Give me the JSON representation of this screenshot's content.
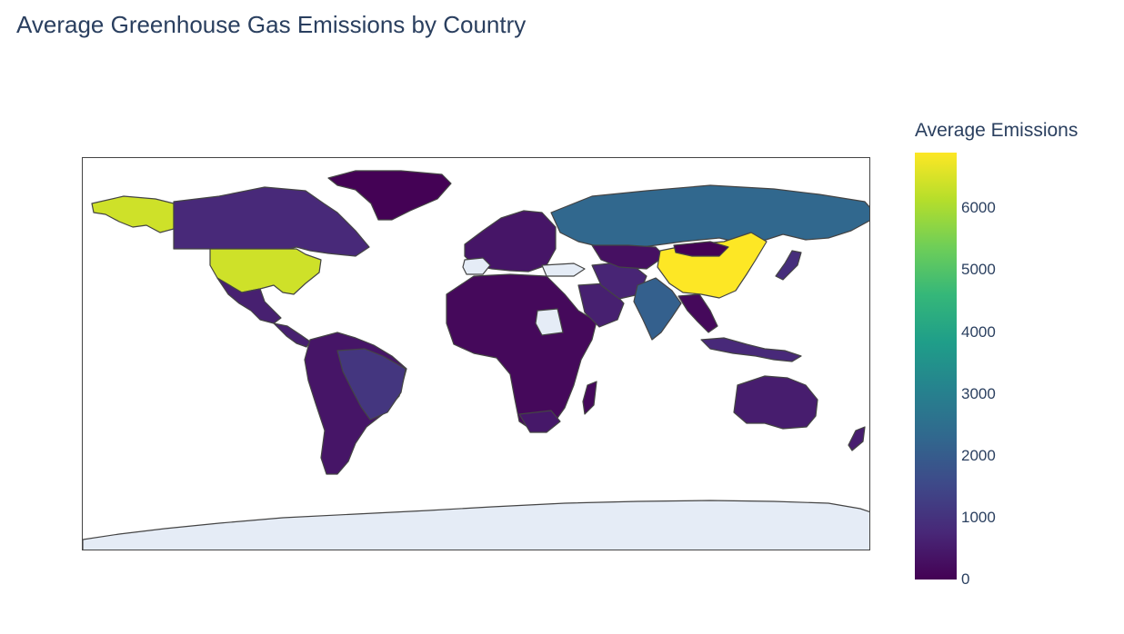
{
  "chart_data": {
    "type": "choropleth",
    "title": "Average Greenhouse Gas Emissions by Country",
    "colorbar": {
      "title": "Average Emissions",
      "range": [
        0,
        6900
      ],
      "ticks": [
        "0",
        "1000",
        "2000",
        "3000",
        "4000",
        "5000",
        "6000"
      ],
      "colorscale": "Viridis"
    },
    "no_data_color": "#e5ecf6",
    "border_color": "#444444",
    "regions": [
      {
        "name": "China",
        "value": 6900
      },
      {
        "name": "United States",
        "value": 6400
      },
      {
        "name": "Russia",
        "value": 2300
      },
      {
        "name": "India",
        "value": 2100
      },
      {
        "name": "Brazil",
        "value": 1100
      },
      {
        "name": "Canada",
        "value": 800
      },
      {
        "name": "Indonesia",
        "value": 800
      },
      {
        "name": "Australia",
        "value": 550
      },
      {
        "name": "Mexico",
        "value": 600
      },
      {
        "name": "Argentina",
        "value": 400
      },
      {
        "name": "Iran",
        "value": 700
      },
      {
        "name": "Kazakhstan",
        "value": 300
      },
      {
        "name": "Saudi Arabia",
        "value": 600
      },
      {
        "name": "South Africa",
        "value": 450
      },
      {
        "name": "Japan",
        "value": 900
      },
      {
        "name": "Europe",
        "value": 400
      },
      {
        "name": "Africa",
        "value": 150
      },
      {
        "name": "Greenland",
        "value": 20
      }
    ],
    "no_data_regions": [
      "Antarctica",
      "Sudan",
      "Spain",
      "Turkey"
    ]
  }
}
